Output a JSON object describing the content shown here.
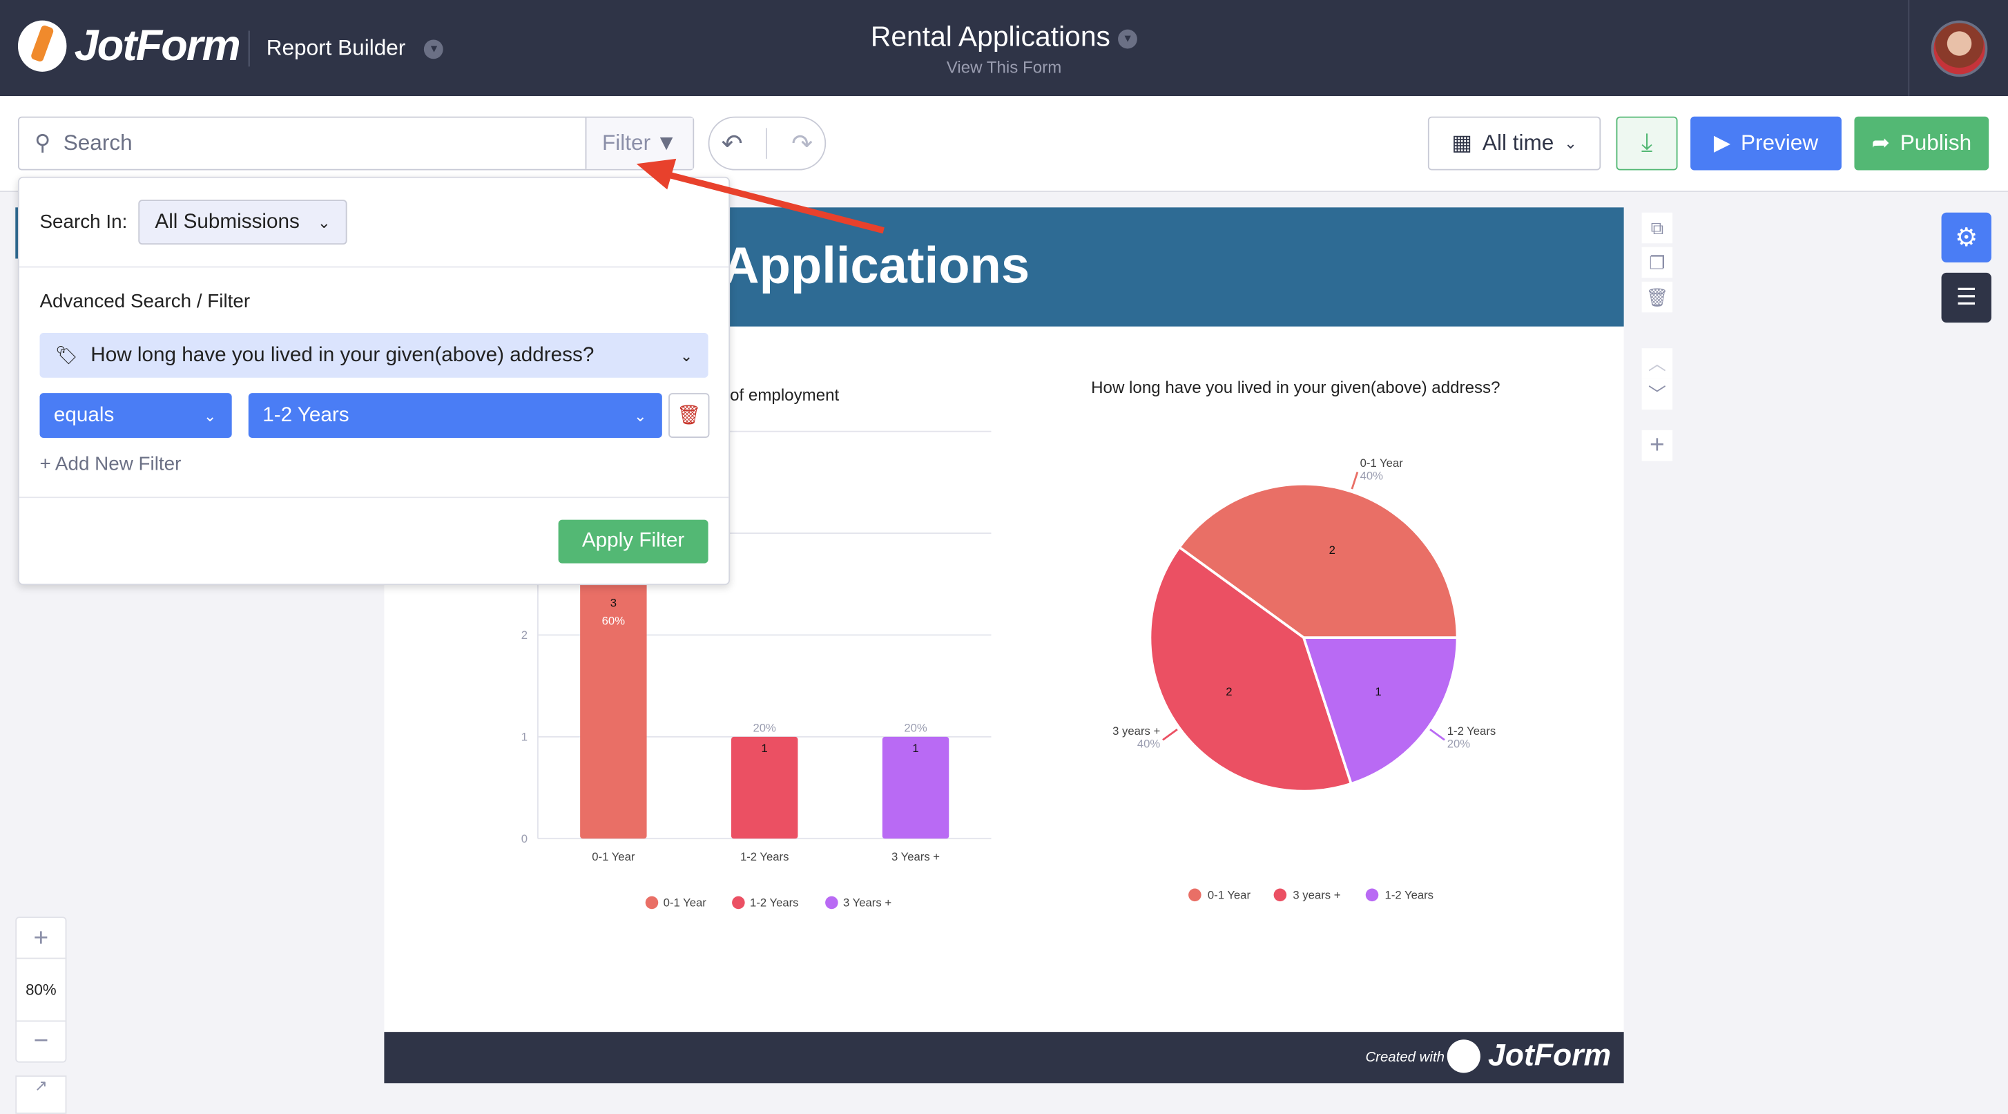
{
  "header": {
    "logo": "JotForm",
    "app_name": "Report Builder",
    "form_title": "Rental Applications",
    "form_link": "View This Form"
  },
  "toolbar": {
    "search_placeholder": "Search",
    "filter_label": "Filter",
    "date_range": "All time",
    "preview_label": "Preview",
    "publish_label": "Publish"
  },
  "filter_popup": {
    "search_in_label": "Search In:",
    "search_in_value": "All Submissions",
    "section_title": "Advanced Search / Filter",
    "question": "How long have you lived in your given(above) address?",
    "operator": "equals",
    "value": "1-2 Years",
    "add_filter_label": "+ Add New Filter",
    "apply_label": "Apply Filter"
  },
  "report": {
    "title": "Applications",
    "footer_created": "Created with",
    "footer_logo": "JotForm"
  },
  "zoom": {
    "level": "80%"
  },
  "colors": {
    "header": "#2f3447",
    "accent_blue": "#4a7df5",
    "green": "#53b874",
    "band": "#2e6b94"
  },
  "chart_data": [
    {
      "type": "bar",
      "title": "of employment",
      "categories": [
        "0-1 Year",
        "1-2 Years",
        "3 Years +"
      ],
      "values": [
        3,
        1,
        1
      ],
      "percent_labels": [
        "60%",
        "20%",
        "20%"
      ],
      "colors": [
        "#e96f66",
        "#eb5063",
        "#b96af4"
      ],
      "ylim": [
        0,
        4
      ],
      "yticks": [
        "0",
        "1",
        "2"
      ],
      "legend": "bottom",
      "grid": true
    },
    {
      "type": "pie",
      "title": "How long have you lived in your given(above) address?",
      "categories": [
        "0-1 Year",
        "3 years +",
        "1-2 Years"
      ],
      "values": [
        2,
        2,
        1
      ],
      "percent_labels": [
        "40%",
        "40%",
        "20%"
      ],
      "colors": [
        "#e96f66",
        "#eb5063",
        "#b96af4"
      ],
      "legend": "bottom"
    }
  ]
}
